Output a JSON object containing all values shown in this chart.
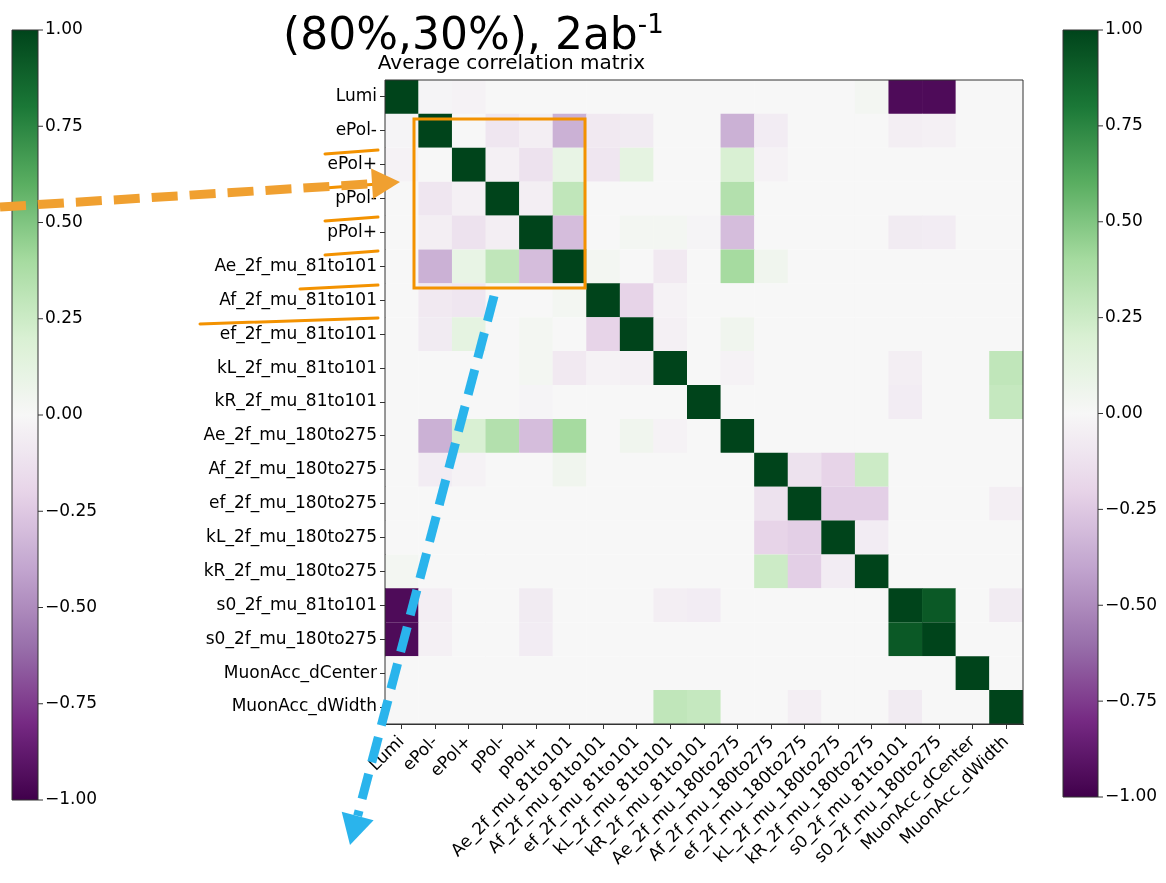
{
  "chart_data": {
    "type": "heatmap",
    "title": "Average correlation matrix",
    "annotations": [
      "(80%,30%), 2ab$^{-1}$"
    ],
    "categories": [
      "Lumi",
      "ePol-",
      "ePol+",
      "pPol-",
      "pPol+",
      "Ae_2f_mu_81to101",
      "Af_2f_mu_81to101",
      "ef_2f_mu_81to101",
      "kL_2f_mu_81to101",
      "kR_2f_mu_81to101",
      "Ae_2f_mu_180to275",
      "Af_2f_mu_180to275",
      "ef_2f_mu_180to275",
      "kL_2f_mu_180to275",
      "kR_2f_mu_180to275",
      "s0_2f_mu_81to101",
      "s0_2f_mu_180to275",
      "MuonAcc_dCenter",
      "MuonAcc_dWidth"
    ],
    "y_categories": [
      "Lumi",
      "ePol-",
      "ePol+",
      "pPol-",
      "pPol+",
      "Ae_2f_mu_81to101",
      "Af_2f_mu_81to101",
      "ef_2f_mu_81to101",
      "kL_2f_mu_81to101",
      "kR_2f_mu_81to101",
      "Ae_2f_mu_180to275",
      "Af_2f_mu_180to275",
      "ef_2f_mu_180to275",
      "kL_2f_mu_180to275",
      "kR_2f_mu_180to275",
      "s0_2f_mu_81to101",
      "s0_2f_mu_180to275",
      "MuonAcc_dCenter",
      "MuonAcc_dWidth"
    ],
    "cells": [
      [
        1,
        -0.02,
        -0.03,
        0,
        0,
        0,
        0,
        0,
        0,
        0,
        0,
        0,
        0,
        0,
        0.03,
        -0.95,
        -0.95,
        0,
        0
      ],
      [
        -0.02,
        1,
        0,
        -0.1,
        -0.05,
        -0.35,
        -0.08,
        -0.07,
        0,
        0,
        -0.35,
        -0.06,
        0,
        0,
        0,
        -0.05,
        -0.04,
        0,
        0
      ],
      [
        -0.03,
        0,
        1,
        -0.04,
        -0.12,
        0.1,
        -0.1,
        0.12,
        0,
        0,
        0.2,
        -0.03,
        0,
        0,
        0,
        0,
        0,
        0,
        0
      ],
      [
        0,
        -0.1,
        -0.04,
        1,
        -0.05,
        0.3,
        0,
        0,
        0,
        0,
        0.35,
        0,
        0,
        0,
        0,
        0,
        0,
        0,
        0
      ],
      [
        0,
        -0.05,
        -0.12,
        -0.05,
        1,
        -0.3,
        0,
        0.03,
        0.03,
        -0.02,
        -0.3,
        0,
        0,
        0,
        0,
        -0.07,
        -0.06,
        0,
        0
      ],
      [
        0,
        -0.35,
        0.1,
        0.3,
        -0.3,
        1,
        0.03,
        0,
        -0.08,
        0,
        0.4,
        0.05,
        0,
        0,
        0,
        0,
        0,
        0,
        0
      ],
      [
        0,
        -0.08,
        -0.1,
        0,
        0,
        0.03,
        1,
        -0.2,
        -0.03,
        0,
        0,
        0,
        0,
        0,
        0,
        0,
        0,
        0,
        0
      ],
      [
        0,
        -0.07,
        0.12,
        0,
        0.03,
        0,
        -0.2,
        1,
        -0.04,
        0,
        0.05,
        0,
        0,
        0,
        0,
        0,
        0,
        0,
        0
      ],
      [
        0,
        0,
        0,
        0,
        0.03,
        -0.08,
        -0.03,
        -0.04,
        1,
        0,
        -0.03,
        0,
        0,
        0,
        0,
        -0.05,
        0,
        0,
        0.3
      ],
      [
        0,
        0,
        0,
        0,
        -0.02,
        0,
        0,
        0,
        0,
        1,
        0,
        0,
        0,
        0,
        0,
        -0.06,
        0,
        0,
        0.28
      ],
      [
        0,
        -0.35,
        0.2,
        0.35,
        -0.3,
        0.4,
        0,
        0.05,
        -0.03,
        0,
        1,
        0,
        0,
        0,
        0,
        0,
        0,
        0,
        0
      ],
      [
        0,
        -0.06,
        -0.03,
        0,
        0,
        0.05,
        0,
        0,
        0,
        0,
        0,
        1,
        -0.12,
        -0.2,
        0.25,
        0,
        0,
        0,
        0
      ],
      [
        0,
        0,
        0,
        0,
        0,
        0,
        0,
        0,
        0,
        0,
        0,
        -0.12,
        1,
        -0.22,
        -0.22,
        0,
        0,
        0,
        -0.05
      ],
      [
        0,
        0,
        0,
        0,
        0,
        0,
        0,
        0,
        0,
        0,
        0,
        -0.2,
        -0.22,
        1,
        -0.06,
        0,
        0,
        0,
        0
      ],
      [
        0.03,
        0,
        0,
        0,
        0,
        0,
        0,
        0,
        0,
        0,
        0,
        0.25,
        -0.22,
        -0.06,
        1,
        0,
        0,
        0,
        0
      ],
      [
        -0.95,
        -0.05,
        0,
        0,
        -0.07,
        0,
        0,
        0,
        -0.05,
        -0.06,
        0,
        0,
        0,
        0,
        0,
        1,
        0.92,
        0,
        -0.07
      ],
      [
        -0.95,
        -0.04,
        0,
        0,
        -0.06,
        0,
        0,
        0,
        0,
        0,
        0,
        0,
        0,
        0,
        0,
        0.92,
        1,
        0,
        0
      ],
      [
        0,
        0,
        0,
        0,
        0,
        0,
        0,
        0,
        0,
        0,
        0,
        0,
        0,
        0,
        0,
        0,
        0,
        1,
        0
      ],
      [
        0,
        0,
        0,
        0,
        0,
        0,
        0,
        0,
        0.3,
        0.28,
        0,
        0,
        -0.05,
        0,
        0,
        -0.07,
        0,
        0,
        1
      ]
    ],
    "clim": [
      -1,
      1
    ],
    "cticks": [
      {
        "value": 1,
        "label": "1.00"
      },
      {
        "value": 0.75,
        "label": "0.75"
      },
      {
        "value": 0.5,
        "label": "0.50"
      },
      {
        "value": 0.25,
        "label": "0.25"
      },
      {
        "value": 0,
        "label": "0.00"
      },
      {
        "value": -0.25,
        "label": "−0.25"
      },
      {
        "value": -0.5,
        "label": "−0.50"
      },
      {
        "value": -0.75,
        "label": "−0.75"
      },
      {
        "value": -1,
        "label": "−1.00"
      }
    ]
  }
}
